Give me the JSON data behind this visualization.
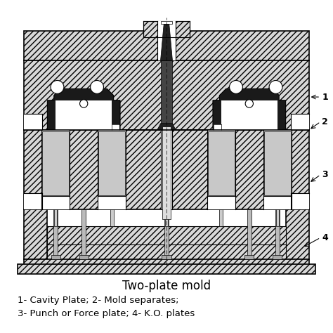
{
  "title": "Two-plate mold",
  "label_line1": "1- Cavity Plate; 2- Mold separates;",
  "label_line2": "3- Punch or Force plate; 4- K.O. plates",
  "annotations": [
    "1",
    "2",
    "3",
    "4"
  ],
  "bg_color": "#ffffff",
  "line_color": "#000000",
  "hatch_color": "#000000",
  "title_fontsize": 12,
  "label_fontsize": 9.5,
  "figsize": [
    4.74,
    4.74
  ],
  "dpi": 100
}
